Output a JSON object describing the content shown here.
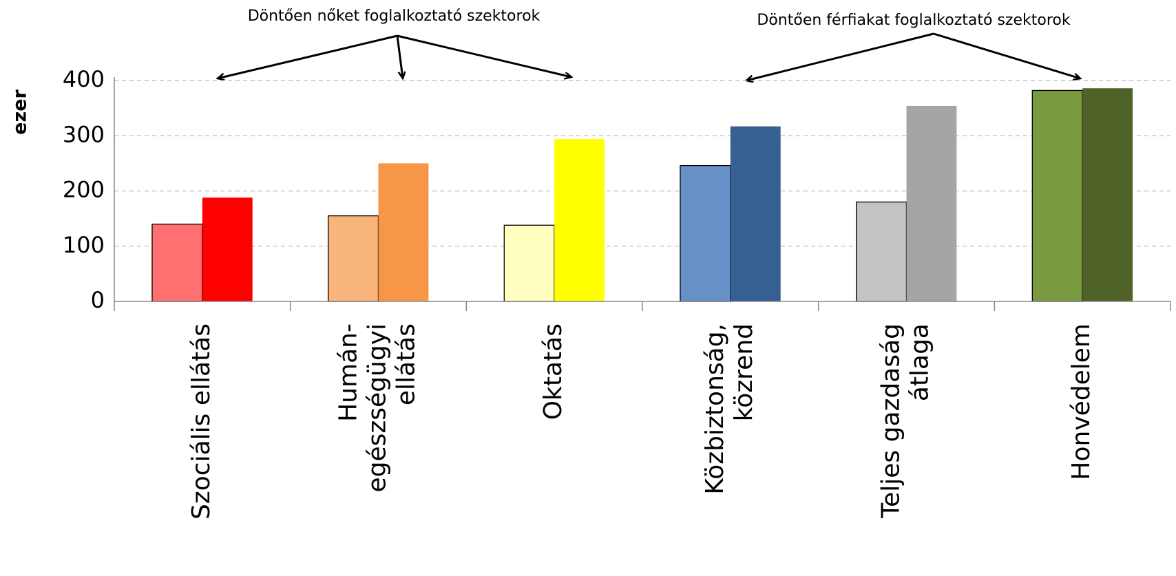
{
  "chart_data": {
    "type": "bar",
    "ylabel": "ezer",
    "annotations": [
      "Döntően nőket foglalkoztató szektorok",
      "Döntően férfiakat foglalkoztató szektorok"
    ],
    "categories": [
      [
        "Szociális ellátás"
      ],
      [
        "Humán-",
        "egészségügyi",
        "ellátás"
      ],
      [
        "Oktatás"
      ],
      [
        "Közbiztonság,",
        "közrend"
      ],
      [
        "Teljes gazdaság",
        "átlaga"
      ],
      [
        "Honvédelem"
      ]
    ],
    "series": [
      {
        "colors": [
          "#ff7070",
          "#f9b47c",
          "#ffffc0",
          "#6690c6",
          "#c3c3c3",
          "#7a9a40"
        ],
        "edgecolor": "#000000",
        "values": [
          140,
          155,
          138,
          246,
          180,
          382
        ]
      },
      {
        "colors": [
          "#ff0000",
          "#f79646",
          "#ffff00",
          "#366092",
          "#a5a5a5",
          "#4f6228"
        ],
        "values": [
          188,
          250,
          294,
          317,
          354,
          386
        ]
      }
    ],
    "ylim": [
      0,
      400
    ],
    "yticks": [
      0,
      100,
      200,
      300,
      400
    ],
    "grid": true
  }
}
